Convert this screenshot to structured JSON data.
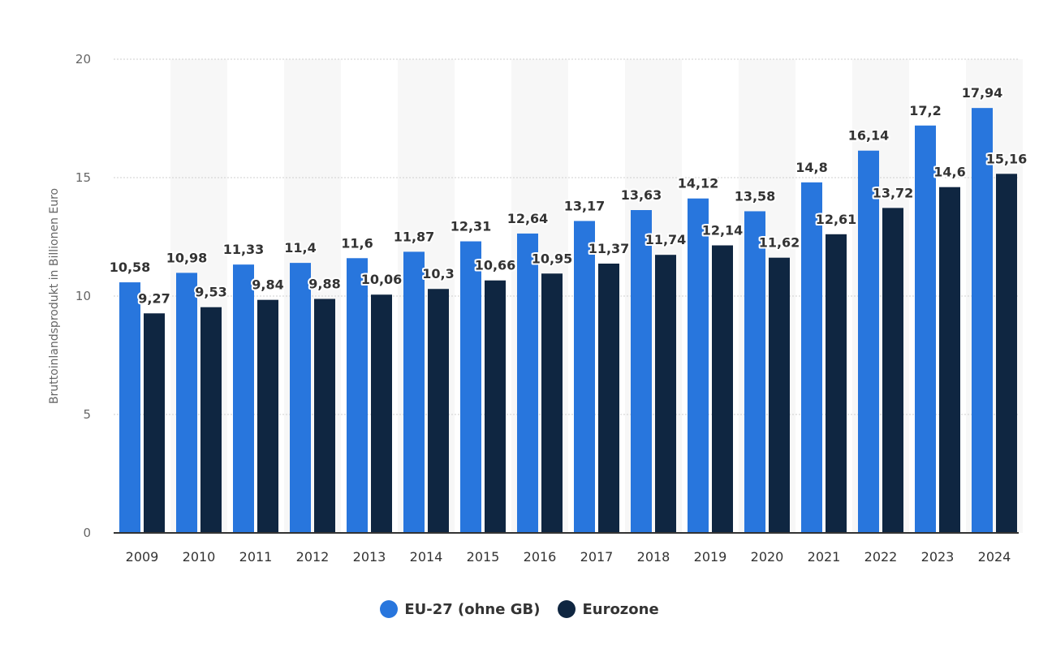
{
  "chart_data": {
    "type": "bar",
    "title": "",
    "xlabel": "",
    "ylabel": "Bruttoinlandsprodukt in Billionen Euro",
    "ylim": [
      0,
      20
    ],
    "yticks": [
      "0",
      "5",
      "10",
      "15",
      "20"
    ],
    "grid": true,
    "legend_position": "bottom",
    "categories": [
      "2009",
      "2010",
      "2011",
      "2012",
      "2013",
      "2014",
      "2015",
      "2016",
      "2017",
      "2018",
      "2019",
      "2020",
      "2021",
      "2022",
      "2023",
      "2024"
    ],
    "series": [
      {
        "name": "EU-27 (ohne GB)",
        "color": "#2876dd",
        "values": [
          10.58,
          10.98,
          11.33,
          11.4,
          11.6,
          11.87,
          12.31,
          12.64,
          13.17,
          13.63,
          14.12,
          13.58,
          14.8,
          16.14,
          17.2,
          17.94
        ],
        "labels": [
          "10,58",
          "10,98",
          "11,33",
          "11,4",
          "11,6",
          "11,87",
          "12,31",
          "12,64",
          "13,17",
          "13,63",
          "14,12",
          "13,58",
          "14,8",
          "16,14",
          "17,2",
          "17,94"
        ]
      },
      {
        "name": "Eurozone",
        "color": "#0f2641",
        "values": [
          9.27,
          9.53,
          9.84,
          9.88,
          10.06,
          10.3,
          10.66,
          10.95,
          11.37,
          11.74,
          12.14,
          11.62,
          12.61,
          13.72,
          14.6,
          15.16
        ],
        "labels": [
          "9,27",
          "9,53",
          "9,84",
          "9,88",
          "10,06",
          "10,3",
          "10,66",
          "10,95",
          "11,37",
          "11,74",
          "12,14",
          "11,62",
          "12,61",
          "13,72",
          "14,6",
          "15,16"
        ]
      }
    ]
  }
}
